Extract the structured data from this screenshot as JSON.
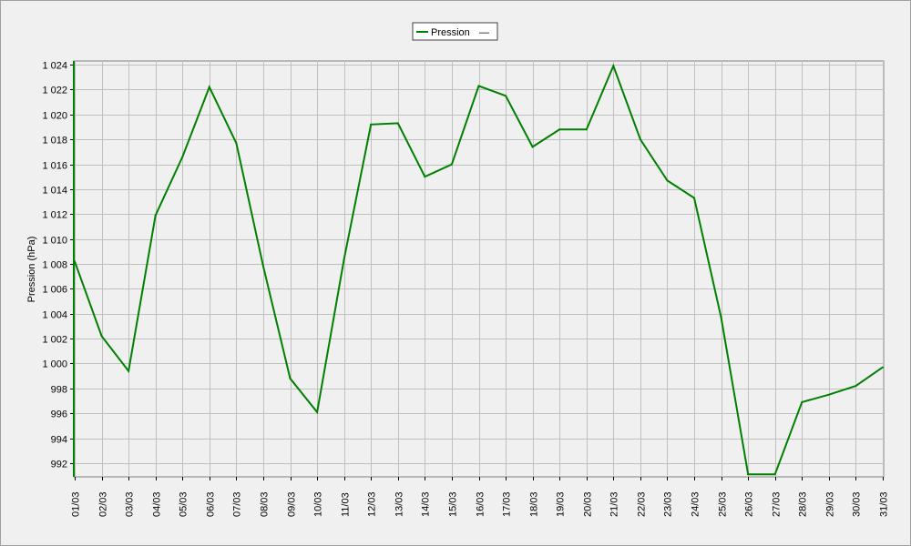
{
  "chart_data": {
    "type": "line",
    "title": "",
    "xlabel": "",
    "ylabel": "Pression (hPa)",
    "legend": {
      "position": "top-center",
      "entries": [
        "Pression"
      ],
      "extra_symbol": "—"
    },
    "grid": true,
    "ylim": [
      990.9,
      1024.3
    ],
    "yticks": [
      "992",
      "994",
      "996",
      "998",
      "1 000",
      "1 002",
      "1 004",
      "1 006",
      "1 008",
      "1 010",
      "1 012",
      "1 014",
      "1 016",
      "1 018",
      "1 020",
      "1 022",
      "1 024"
    ],
    "ytick_values": [
      992,
      994,
      996,
      998,
      1000,
      1002,
      1004,
      1006,
      1008,
      1010,
      1012,
      1014,
      1016,
      1018,
      1020,
      1022,
      1024
    ],
    "categories": [
      "01/03",
      "02/03",
      "03/03",
      "04/03",
      "05/03",
      "06/03",
      "07/03",
      "08/03",
      "09/03",
      "10/03",
      "11/03",
      "12/03",
      "13/03",
      "14/03",
      "15/03",
      "16/03",
      "17/03",
      "18/03",
      "19/03",
      "20/03",
      "21/03",
      "22/03",
      "23/03",
      "24/03",
      "25/03",
      "26/03",
      "27/03",
      "28/03",
      "29/03",
      "30/03",
      "31/03"
    ],
    "series": [
      {
        "name": "Pression",
        "color": "#008000",
        "values": [
          1008.2,
          1002.2,
          999.4,
          1011.9,
          1016.6,
          1022.2,
          1017.7,
          1007.8,
          998.8,
          996.1,
          1008.4,
          1019.2,
          1019.3,
          1015.0,
          1016.0,
          1022.3,
          1021.5,
          1017.4,
          1018.8,
          1018.8,
          1023.9,
          1018.0,
          1014.7,
          1013.3,
          1003.7,
          991.1,
          991.1,
          996.9,
          997.5,
          998.2,
          999.7
        ]
      }
    ]
  }
}
